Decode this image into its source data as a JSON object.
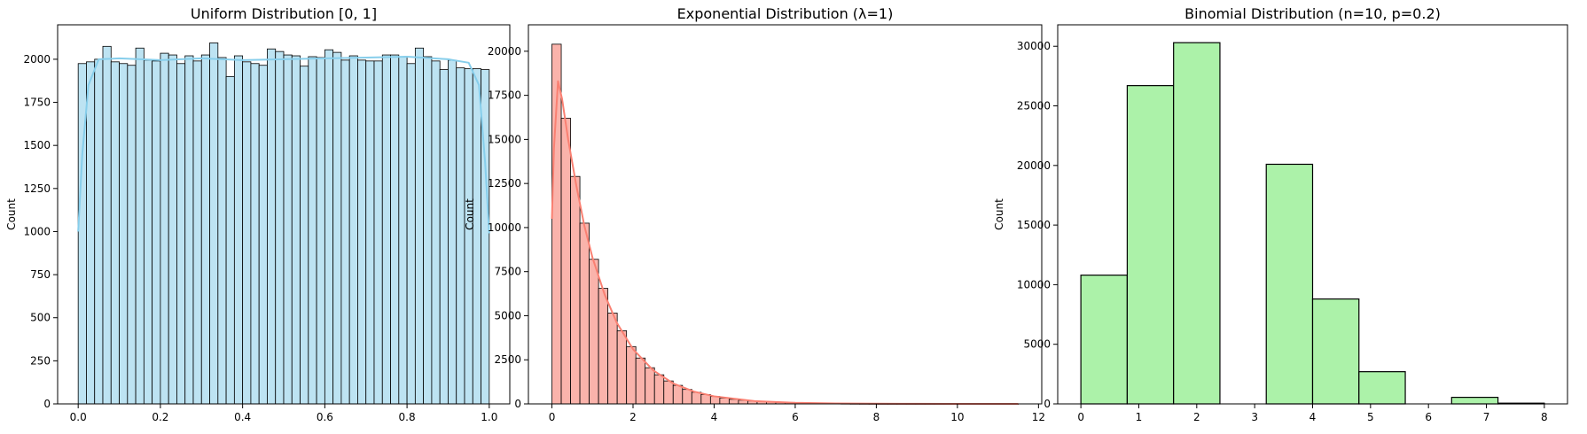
{
  "chart_data": [
    {
      "id": "uniform",
      "type": "bar",
      "title": "Uniform Distribution [0, 1]",
      "xlabel": "",
      "ylabel": "Count",
      "xlim": [
        -0.05,
        1.05
      ],
      "ylim": [
        0,
        2200
      ],
      "xticks": [
        0,
        0.2,
        0.4,
        0.6,
        0.8,
        1.0
      ],
      "xticklabels": [
        "0.0",
        "0.2",
        "0.4",
        "0.6",
        "0.8",
        "1.0"
      ],
      "yticks": [
        0,
        250,
        500,
        750,
        1000,
        1250,
        1500,
        1750,
        2000
      ],
      "yticklabels": [
        "0",
        "250",
        "500",
        "750",
        "1000",
        "1250",
        "1500",
        "1750",
        "2000"
      ],
      "bar_color": "#bde3f2",
      "kde_color": "#87ceeb",
      "bins": {
        "start": 0,
        "width": 0.02,
        "values": [
          1975,
          1985,
          2000,
          2075,
          1985,
          1975,
          1965,
          2065,
          1995,
          1990,
          2035,
          2025,
          1975,
          2020,
          1990,
          2025,
          2095,
          2010,
          1900,
          2020,
          1985,
          1975,
          1965,
          2060,
          2045,
          2025,
          2020,
          1960,
          2015,
          2010,
          2055,
          2040,
          1995,
          2020,
          1995,
          1990,
          1990,
          2025,
          2025,
          2015,
          1975,
          2065,
          2015,
          1990,
          1940,
          1995,
          1950,
          1945,
          1945,
          1940
        ]
      },
      "kde": {
        "x": [
          0,
          0.01,
          0.025,
          0.05,
          0.1,
          0.2,
          0.3,
          0.4,
          0.5,
          0.6,
          0.7,
          0.8,
          0.9,
          0.95,
          0.975,
          0.99,
          1.0
        ],
        "y": [
          1000,
          1450,
          1850,
          2000,
          2005,
          1995,
          2005,
          1995,
          2000,
          2005,
          2010,
          2015,
          2000,
          1980,
          1850,
          1400,
          990
        ]
      }
    },
    {
      "id": "exponential",
      "type": "bar",
      "title": "Exponential Distribution (λ=1)",
      "xlabel": "",
      "ylabel": "Count",
      "xlim": [
        -0.58,
        12.08
      ],
      "ylim": [
        0,
        21500
      ],
      "xticks": [
        0,
        2,
        4,
        6,
        8,
        10,
        12
      ],
      "xticklabels": [
        "0",
        "2",
        "4",
        "6",
        "8",
        "10",
        "12"
      ],
      "yticks": [
        0,
        2500,
        5000,
        7500,
        10000,
        12500,
        15000,
        17500,
        20000
      ],
      "yticklabels": [
        "0",
        "2500",
        "5000",
        "7500",
        "10000",
        "12500",
        "15000",
        "17500",
        "20000"
      ],
      "bar_color": "#fab3ab",
      "kde_color": "#fa8072",
      "bins": {
        "start": 0,
        "width": 0.23,
        "values": [
          20400,
          16200,
          12900,
          10250,
          8200,
          6550,
          5150,
          4150,
          3250,
          2600,
          2050,
          1650,
          1300,
          1050,
          820,
          660,
          530,
          420,
          330,
          260,
          210,
          165,
          130,
          105,
          85,
          65,
          50,
          40,
          32,
          25,
          20,
          16,
          12,
          10,
          8,
          6,
          5,
          4,
          3,
          3,
          2,
          2,
          1,
          1,
          1,
          1,
          1,
          1,
          1,
          1
        ]
      },
      "kde": {
        "x": [
          0,
          0.05,
          0.15,
          0.25,
          0.4,
          0.6,
          0.8,
          1.0,
          1.3,
          1.6,
          2.0,
          2.5,
          3.0,
          3.5,
          4.0,
          5.0,
          6.0,
          7.0,
          8.0,
          9.0,
          10.0,
          11.5
        ],
        "y": [
          10500,
          14500,
          18300,
          17300,
          15000,
          12400,
          10100,
          8300,
          6200,
          4600,
          3100,
          1900,
          1150,
          700,
          430,
          160,
          60,
          25,
          10,
          5,
          2,
          0
        ]
      }
    },
    {
      "id": "binomial",
      "type": "bar",
      "title": "Binomial Distribution (n=10, p=0.2)",
      "xlabel": "",
      "ylabel": "Count",
      "xlim": [
        -0.4,
        8.4
      ],
      "ylim": [
        0,
        31800
      ],
      "xticks": [
        0,
        1,
        2,
        3,
        4,
        5,
        6,
        7,
        8
      ],
      "xticklabels": [
        "0",
        "1",
        "2",
        "3",
        "4",
        "5",
        "6",
        "7",
        "8"
      ],
      "yticks": [
        0,
        5000,
        10000,
        15000,
        20000,
        25000,
        30000
      ],
      "yticklabels": [
        "0",
        "5000",
        "10000",
        "15000",
        "20000",
        "25000",
        "30000"
      ],
      "bar_color": "#acf2a9",
      "bins": {
        "start": 0,
        "width": 0.8,
        "values": [
          10800,
          26700,
          30300,
          0,
          20100,
          8800,
          2700,
          0,
          550,
          60,
          0
        ]
      }
    }
  ]
}
